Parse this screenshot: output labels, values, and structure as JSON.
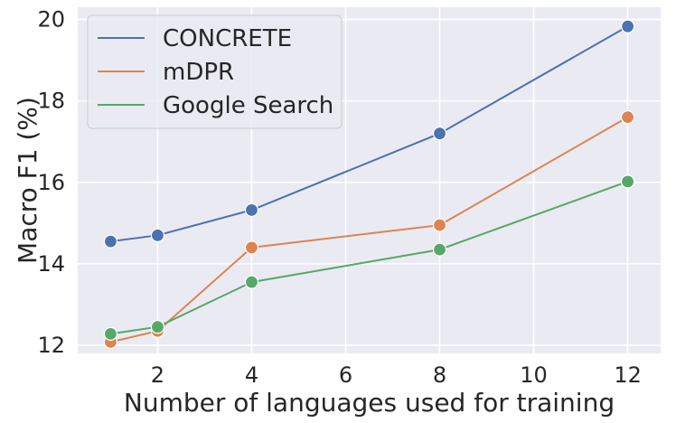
{
  "chart_data": {
    "type": "line",
    "xlabel": "Number of languages used for training",
    "ylabel": "Macro F1 (%)",
    "xlim": [
      0.3,
      12.7
    ],
    "ylim": [
      11.8,
      20.3
    ],
    "x_ticks": [
      2,
      4,
      6,
      8,
      10,
      12
    ],
    "y_ticks": [
      12,
      14,
      16,
      18,
      20
    ],
    "x": [
      1,
      2,
      4,
      8,
      12
    ],
    "grid": true,
    "legend_position": "top-left",
    "background": "#eaeaf2",
    "series": [
      {
        "name": "CONCRETE",
        "color": "#4c72b0",
        "values": [
          14.55,
          14.7,
          15.32,
          17.2,
          19.83
        ]
      },
      {
        "name": "mDPR",
        "color": "#dd8452",
        "values": [
          12.08,
          12.35,
          14.4,
          14.95,
          17.6
        ]
      },
      {
        "name": "Google Search",
        "color": "#55a868",
        "values": [
          12.28,
          12.45,
          13.55,
          14.35,
          16.02
        ]
      }
    ]
  }
}
